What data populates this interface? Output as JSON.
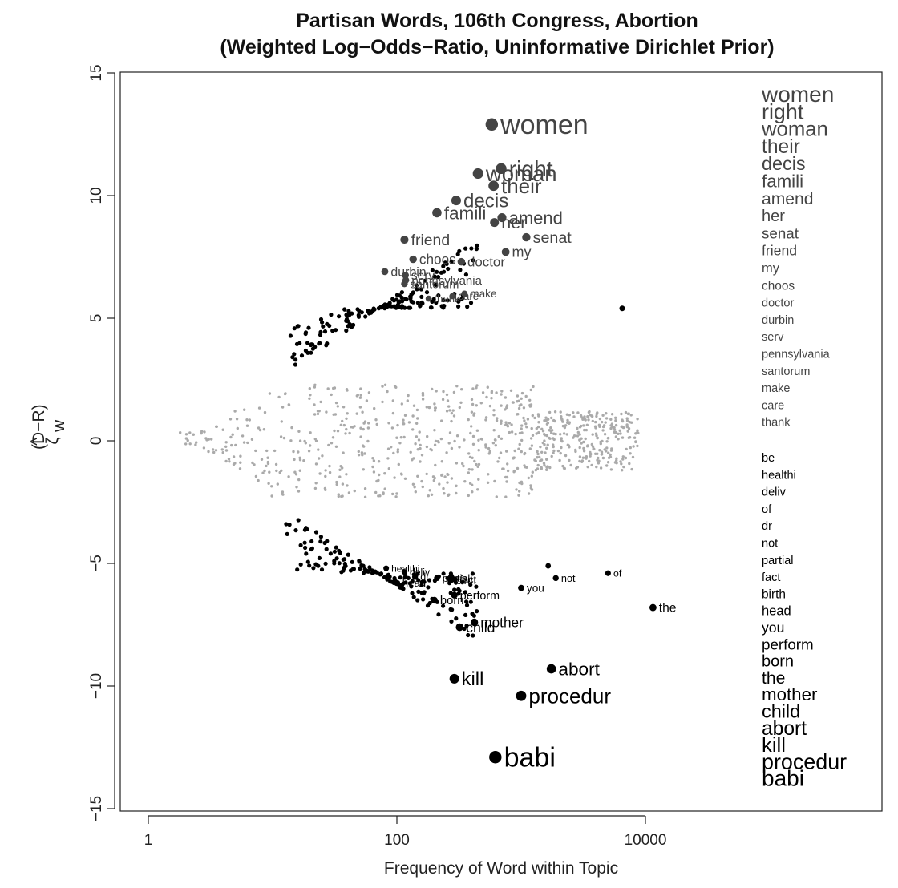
{
  "chart_data": {
    "type": "scatter",
    "title": "Partisan Words, 106th Congress, Abortion",
    "subtitle": "(Weighted Log−Odds−Ratio, Uninformative Dirichlet Prior)",
    "xlabel": "Frequency of Word within Topic",
    "ylabel_main": "ζ",
    "ylabel_hat": "^",
    "ylabel_sub": "w",
    "ylabel_sup": "(D−R)",
    "x_scale": "log",
    "xlim": [
      1,
      100000
    ],
    "ylim": [
      -15,
      15
    ],
    "x_ticks": [
      1,
      100,
      10000
    ],
    "x_tick_labels": [
      "1",
      "100",
      "10000"
    ],
    "y_ticks": [
      -15,
      -10,
      -5,
      0,
      5,
      10,
      15
    ],
    "y_tick_labels": [
      "−15",
      "−10",
      "−5",
      "0",
      "5",
      "10",
      "15"
    ],
    "colors": {
      "democrat": "#444444",
      "republican": "#000000",
      "neutral": "#aaaaaa"
    },
    "series": [
      {
        "group": "democrat",
        "points": [
          {
            "label": "women",
            "x": 580,
            "y": 12.9
          },
          {
            "label": "right",
            "x": 690,
            "y": 11.1
          },
          {
            "label": "woman",
            "x": 450,
            "y": 10.9
          },
          {
            "label": "their",
            "x": 600,
            "y": 10.4
          },
          {
            "label": "decis",
            "x": 300,
            "y": 9.8
          },
          {
            "label": "famili",
            "x": 210,
            "y": 9.3
          },
          {
            "label": "amend",
            "x": 700,
            "y": 9.1
          },
          {
            "label": "her",
            "x": 610,
            "y": 8.9
          },
          {
            "label": "senat",
            "x": 1100,
            "y": 8.3
          },
          {
            "label": "friend",
            "x": 115,
            "y": 8.2
          },
          {
            "label": "my",
            "x": 750,
            "y": 7.7
          },
          {
            "label": "choos",
            "x": 135,
            "y": 7.4
          },
          {
            "label": "doctor",
            "x": 330,
            "y": 7.3
          },
          {
            "label": "durbin",
            "x": 80,
            "y": 6.9
          },
          {
            "label": "serv",
            "x": 117,
            "y": 6.75
          },
          {
            "label": "pennsylvania",
            "x": 118,
            "y": 6.55
          },
          {
            "label": "santorum",
            "x": 115,
            "y": 6.4
          },
          {
            "label": "make",
            "x": 350,
            "y": 6.0
          },
          {
            "label": "care",
            "x": 280,
            "y": 5.9
          },
          {
            "label": "thank",
            "x": 180,
            "y": 5.8
          }
        ]
      },
      {
        "group": "republican",
        "points": [
          {
            "label": "be",
            "x": 1650,
            "y": -5.1
          },
          {
            "label": "healthi",
            "x": 82,
            "y": -5.2
          },
          {
            "label": "deliv",
            "x": 115,
            "y": -5.35
          },
          {
            "label": "not",
            "x": 1900,
            "y": -5.6
          },
          {
            "label": "of",
            "x": 5000,
            "y": -5.4
          },
          {
            "label": "dr",
            "x": 140,
            "y": -5.55
          },
          {
            "label": "partial",
            "x": 210,
            "y": -5.6
          },
          {
            "label": "fact",
            "x": 290,
            "y": -5.65
          },
          {
            "label": "birth",
            "x": 270,
            "y": -5.7
          },
          {
            "label": "head",
            "x": 100,
            "y": -5.8
          },
          {
            "label": "you",
            "x": 1000,
            "y": -6.0
          },
          {
            "label": "perform",
            "x": 290,
            "y": -6.3
          },
          {
            "label": "the",
            "x": 11500,
            "y": -6.8
          },
          {
            "label": "born",
            "x": 200,
            "y": -6.5
          },
          {
            "label": "mother",
            "x": 420,
            "y": -7.4
          },
          {
            "label": "child",
            "x": 320,
            "y": -7.6
          },
          {
            "label": "abort",
            "x": 1750,
            "y": -9.3
          },
          {
            "label": "kill",
            "x": 290,
            "y": -9.7
          },
          {
            "label": "procedur",
            "x": 1000,
            "y": -10.4
          },
          {
            "label": "babi",
            "x": 620,
            "y": -12.9
          }
        ]
      }
    ],
    "extra_black_point": {
      "x": 6500,
      "y": 5.4
    },
    "right_column": {
      "top": [
        "women",
        "right",
        "woman",
        "their",
        "decis",
        "famili",
        "amend",
        "her",
        "senat",
        "friend",
        "my",
        "choos",
        "doctor",
        "durbin",
        "serv",
        "pennsylvania",
        "santorum",
        "make",
        "care",
        "thank"
      ],
      "bottom": [
        "be",
        "healthi",
        "deliv",
        "of",
        "dr",
        "not",
        "partial",
        "fact",
        "birth",
        "head",
        "you",
        "perform",
        "born",
        "the",
        "mother",
        "child",
        "abort",
        "kill",
        "procedur",
        "babi"
      ]
    }
  }
}
